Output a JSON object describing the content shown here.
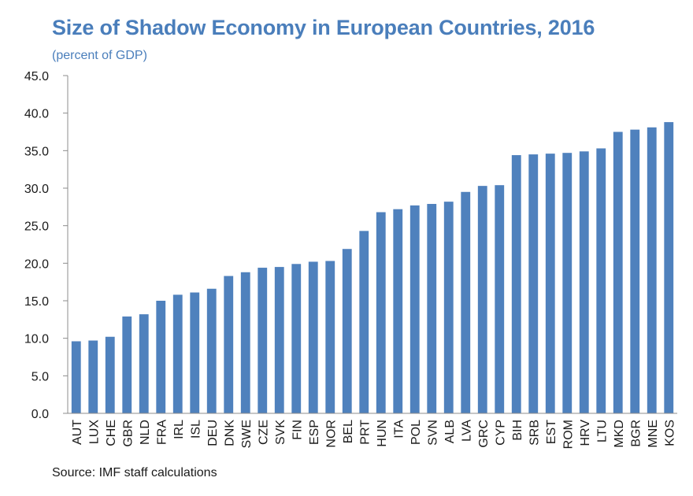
{
  "chart_data": {
    "type": "bar",
    "title": "Size of Shadow Economy in European Countries, 2016",
    "subtitle": "(percent of GDP)",
    "source": "Source: IMF staff calculations",
    "xlabel": "",
    "ylabel": "",
    "ylim": [
      0,
      45
    ],
    "yticks": [
      "0.0",
      "5.0",
      "10.0",
      "15.0",
      "20.0",
      "25.0",
      "30.0",
      "35.0",
      "40.0",
      "45.0"
    ],
    "grid": false,
    "legend": "none",
    "bar_color": "#4f81bd",
    "categories": [
      "AUT",
      "LUX",
      "CHE",
      "GBR",
      "NLD",
      "FRA",
      "IRL",
      "ISL",
      "DEU",
      "DNK",
      "SWE",
      "CZE",
      "SVK",
      "FIN",
      "ESP",
      "NOR",
      "BEL",
      "PRT",
      "HUN",
      "ITA",
      "POL",
      "SVN",
      "ALB",
      "LVA",
      "GRC",
      "CYP",
      "BIH",
      "SRB",
      "EST",
      "ROM",
      "HRV",
      "LTU",
      "MKD",
      "BGR",
      "MNE",
      "KOS"
    ],
    "values": [
      9.6,
      9.7,
      10.2,
      12.9,
      13.2,
      15.0,
      15.8,
      16.1,
      16.6,
      18.3,
      18.8,
      19.4,
      19.5,
      19.9,
      20.2,
      20.3,
      21.9,
      24.3,
      26.8,
      27.2,
      27.7,
      27.9,
      28.2,
      29.5,
      30.3,
      30.4,
      34.4,
      34.5,
      34.6,
      34.7,
      34.9,
      35.3,
      37.5,
      37.8,
      38.1,
      38.8
    ]
  }
}
